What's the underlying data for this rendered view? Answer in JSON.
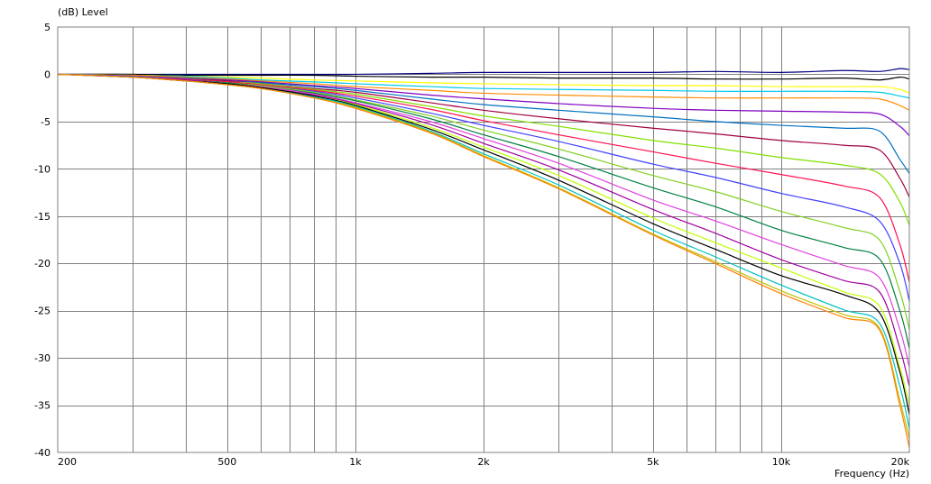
{
  "chart_data": {
    "type": "line",
    "ylabel": "(dB)  Level",
    "xlabel": "Frequency  (Hz)",
    "xscale": "log",
    "xlim": [
      200,
      20000
    ],
    "ylim": [
      -40,
      5
    ],
    "grid": true,
    "legend": "none",
    "x_ticks": [
      {
        "value": 200,
        "label": "200"
      },
      {
        "value": 500,
        "label": "500"
      },
      {
        "value": 1000,
        "label": "1k"
      },
      {
        "value": 2000,
        "label": "2k"
      },
      {
        "value": 5000,
        "label": "5k"
      },
      {
        "value": 10000,
        "label": "10k"
      },
      {
        "value": 20000,
        "label": "20k"
      }
    ],
    "x_minor_grid": [
      300,
      400,
      600,
      700,
      800,
      900,
      3000,
      4000,
      6000,
      7000,
      8000,
      9000
    ],
    "y_ticks": [
      {
        "value": 5,
        "label": "5"
      },
      {
        "value": 0,
        "label": "0"
      },
      {
        "value": -5,
        "label": "-5"
      },
      {
        "value": -10,
        "label": "-10"
      },
      {
        "value": -15,
        "label": "-15"
      },
      {
        "value": -20,
        "label": "-20"
      },
      {
        "value": -25,
        "label": "-25"
      },
      {
        "value": -30,
        "label": "-30"
      },
      {
        "value": -35,
        "label": "-35"
      },
      {
        "value": -40,
        "label": "-40"
      }
    ],
    "series_x": [
      200,
      300,
      400,
      500,
      600,
      800,
      1000,
      1500,
      2000,
      3000,
      5000,
      7000,
      10000,
      14000,
      17000,
      19000,
      20000
    ],
    "series": [
      {
        "color": "#000080",
        "values": [
          0,
          0,
          0,
          0,
          0,
          0,
          0,
          0.1,
          0.2,
          0.2,
          0.2,
          0.3,
          0.2,
          0.4,
          0.3,
          0.6,
          0.5
        ]
      },
      {
        "color": "#000000",
        "values": [
          0,
          0,
          -0.1,
          -0.1,
          -0.1,
          -0.1,
          -0.2,
          -0.3,
          -0.3,
          -0.4,
          -0.4,
          -0.5,
          -0.5,
          -0.4,
          -0.6,
          -0.3,
          -0.5
        ]
      },
      {
        "color": "#ffff00",
        "values": [
          0,
          -0.1,
          -0.2,
          -0.3,
          -0.4,
          -0.6,
          -0.7,
          -0.9,
          -1.0,
          -1.1,
          -1.2,
          -1.2,
          -1.3,
          -1.3,
          -1.3,
          -1.6,
          -2.0
        ]
      },
      {
        "color": "#00c8e8",
        "values": [
          0,
          -0.1,
          -0.2,
          -0.4,
          -0.6,
          -0.8,
          -1.0,
          -1.3,
          -1.5,
          -1.6,
          -1.7,
          -1.8,
          -1.8,
          -1.8,
          -1.9,
          -2.3,
          -2.5
        ]
      },
      {
        "color": "#ff8c00",
        "values": [
          0,
          -0.1,
          -0.3,
          -0.5,
          -0.7,
          -1.0,
          -1.3,
          -1.7,
          -2.0,
          -2.2,
          -2.4,
          -2.5,
          -2.5,
          -2.5,
          -2.6,
          -3.3,
          -3.8
        ]
      },
      {
        "color": "#8000c0",
        "values": [
          0,
          -0.2,
          -0.4,
          -0.6,
          -0.8,
          -1.2,
          -1.5,
          -2.2,
          -2.6,
          -3.1,
          -3.6,
          -3.8,
          -3.9,
          -4.0,
          -4.2,
          -5.5,
          -6.5
        ]
      },
      {
        "color": "#0070c0",
        "values": [
          0,
          -0.2,
          -0.4,
          -0.7,
          -0.9,
          -1.3,
          -1.7,
          -2.6,
          -3.2,
          -3.8,
          -4.5,
          -5.0,
          -5.4,
          -5.7,
          -6.0,
          -9.0,
          -10.5
        ]
      },
      {
        "color": "#a00040",
        "values": [
          0,
          -0.2,
          -0.5,
          -0.7,
          -1.0,
          -1.5,
          -1.9,
          -3.0,
          -3.8,
          -4.7,
          -5.7,
          -6.3,
          -7.0,
          -7.5,
          -8.0,
          -11.0,
          -13.0
        ]
      },
      {
        "color": "#80e000",
        "values": [
          0,
          -0.2,
          -0.5,
          -0.8,
          -1.0,
          -1.6,
          -2.1,
          -3.4,
          -4.4,
          -5.5,
          -7.0,
          -7.8,
          -8.8,
          -9.6,
          -10.5,
          -13.5,
          -16.0
        ]
      },
      {
        "color": "#ff1050",
        "values": [
          0,
          -0.2,
          -0.5,
          -0.8,
          -1.1,
          -1.7,
          -2.3,
          -3.7,
          -4.9,
          -6.4,
          -8.2,
          -9.4,
          -10.6,
          -11.8,
          -13.0,
          -18.0,
          -22.0
        ]
      },
      {
        "color": "#4040ff",
        "values": [
          0,
          -0.2,
          -0.6,
          -0.9,
          -1.2,
          -1.8,
          -2.5,
          -4.1,
          -5.4,
          -7.1,
          -9.5,
          -10.9,
          -12.6,
          -14.0,
          -15.5,
          -20.0,
          -24.0
        ]
      },
      {
        "color": "#80d020",
        "values": [
          0,
          -0.3,
          -0.6,
          -0.9,
          -1.2,
          -1.9,
          -2.7,
          -4.4,
          -5.9,
          -7.9,
          -10.7,
          -12.4,
          -14.5,
          -16.2,
          -17.5,
          -23.0,
          -27.0
        ]
      },
      {
        "color": "#008040",
        "values": [
          0,
          -0.3,
          -0.6,
          -0.9,
          -1.3,
          -2.0,
          -2.8,
          -4.7,
          -6.4,
          -8.7,
          -12.0,
          -14.0,
          -16.5,
          -18.3,
          -19.5,
          -25.0,
          -29.0
        ]
      },
      {
        "color": "#e040e0",
        "values": [
          0,
          -0.3,
          -0.6,
          -1.0,
          -1.3,
          -2.1,
          -3.0,
          -5.0,
          -6.8,
          -9.4,
          -13.3,
          -15.5,
          -18.0,
          -20.2,
          -21.5,
          -27.0,
          -31.0
        ]
      },
      {
        "color": "#a000a0",
        "values": [
          0,
          -0.3,
          -0.6,
          -1.0,
          -1.4,
          -2.2,
          -3.1,
          -5.3,
          -7.3,
          -10.1,
          -14.3,
          -16.8,
          -19.6,
          -21.8,
          -23.0,
          -29.0,
          -33.0
        ]
      },
      {
        "color": "#c0ff00",
        "values": [
          0,
          -0.3,
          -0.7,
          -1.0,
          -1.4,
          -2.3,
          -3.2,
          -5.6,
          -7.7,
          -10.7,
          -15.2,
          -17.8,
          -20.5,
          -23.0,
          -24.5,
          -31.0,
          -35.0
        ]
      },
      {
        "color": "#000000",
        "values": [
          0,
          -0.3,
          -0.7,
          -1.0,
          -1.4,
          -2.3,
          -3.3,
          -5.8,
          -8.0,
          -11.2,
          -15.8,
          -18.5,
          -21.3,
          -23.3,
          -25.2,
          -31.5,
          -36.0
        ]
      },
      {
        "color": "#00c0c0",
        "values": [
          0,
          -0.3,
          -0.7,
          -1.1,
          -1.5,
          -2.4,
          -3.4,
          -6.0,
          -8.4,
          -11.7,
          -16.5,
          -19.3,
          -22.3,
          -24.9,
          -26.3,
          -33.0,
          -37.5
        ]
      },
      {
        "color": "#c0c000",
        "values": [
          0,
          -0.3,
          -0.7,
          -1.1,
          -1.5,
          -2.5,
          -3.5,
          -6.1,
          -8.6,
          -12.0,
          -16.9,
          -19.8,
          -22.9,
          -25.4,
          -26.8,
          -34.5,
          -38.5
        ]
      },
      {
        "color": "#ff8000",
        "values": [
          0,
          -0.3,
          -0.7,
          -1.1,
          -1.5,
          -2.5,
          -3.6,
          -6.2,
          -8.7,
          -12.1,
          -17.0,
          -20.0,
          -23.2,
          -25.7,
          -27.0,
          -35.0,
          -39.5
        ]
      }
    ]
  }
}
